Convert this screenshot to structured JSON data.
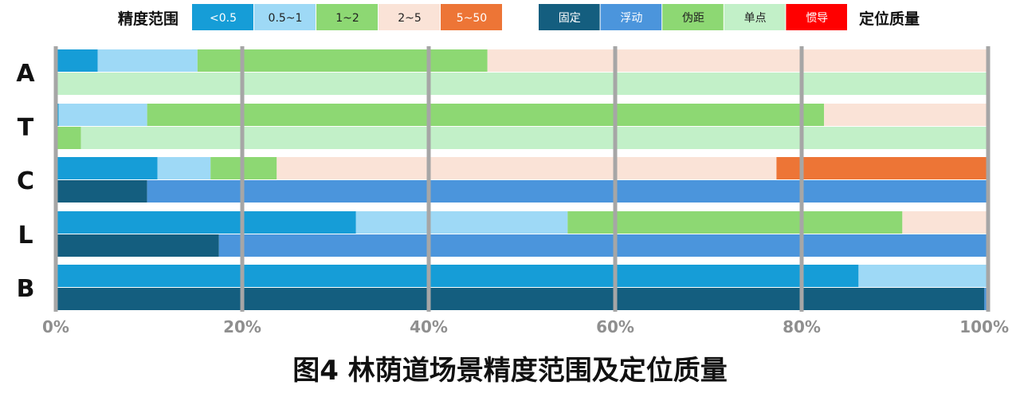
{
  "chart_data": {
    "type": "bar",
    "orientation": "horizontal",
    "stacked": true,
    "title": "图4 林荫道场景精度范围及定位质量",
    "xlim": [
      0,
      100
    ],
    "x_ticks": [
      "0%",
      "20%",
      "40%",
      "60%",
      "80%",
      "100%"
    ],
    "grid": true,
    "categories": [
      "A",
      "T",
      "C",
      "L",
      "B"
    ],
    "accuracy_legend": {
      "title": "精度范围",
      "placement": "top-left",
      "series": [
        {
          "name": "<0.5",
          "color": "#169dd7",
          "text_color": "#ffffff"
        },
        {
          "name": "0.5~1",
          "color": "#9ed9f6",
          "text_color": "#222222"
        },
        {
          "name": "1~2",
          "color": "#8dd873",
          "text_color": "#222222"
        },
        {
          "name": "2~5",
          "color": "#fae3d7",
          "text_color": "#222222"
        },
        {
          "name": "5~50",
          "color": "#ed7536",
          "text_color": "#ffffff"
        }
      ]
    },
    "quality_legend": {
      "title": "定位质量",
      "placement": "top-right",
      "series": [
        {
          "name": "固定",
          "color": "#145e7f",
          "text_color": "#ffffff"
        },
        {
          "name": "浮动",
          "color": "#4b95dc",
          "text_color": "#ffffff"
        },
        {
          "name": "伪距",
          "color": "#8dd873",
          "text_color": "#222222"
        },
        {
          "name": "单点",
          "color": "#c2f0c8",
          "text_color": "#222222"
        },
        {
          "name": "惯导",
          "color": "#ff0000",
          "text_color": "#ffffff"
        }
      ]
    },
    "accuracy_values": [
      [
        4.5,
        10.7,
        31.1,
        53.7,
        0
      ],
      [
        0.3,
        9.5,
        72.6,
        17.6,
        0
      ],
      [
        10.9,
        5.7,
        7.1,
        53.6,
        22.7
      ],
      [
        32.2,
        22.7,
        35.9,
        9.2,
        0
      ],
      [
        86.1,
        13.9,
        0,
        0,
        0
      ]
    ],
    "quality_values": [
      [
        0,
        0,
        0,
        100,
        0
      ],
      [
        0,
        0,
        2.7,
        97.3,
        0
      ],
      [
        9.8,
        90.2,
        0,
        0,
        0
      ],
      [
        17.5,
        82.5,
        0,
        0,
        0
      ],
      [
        99.6,
        0.4,
        0,
        0,
        0
      ]
    ]
  }
}
